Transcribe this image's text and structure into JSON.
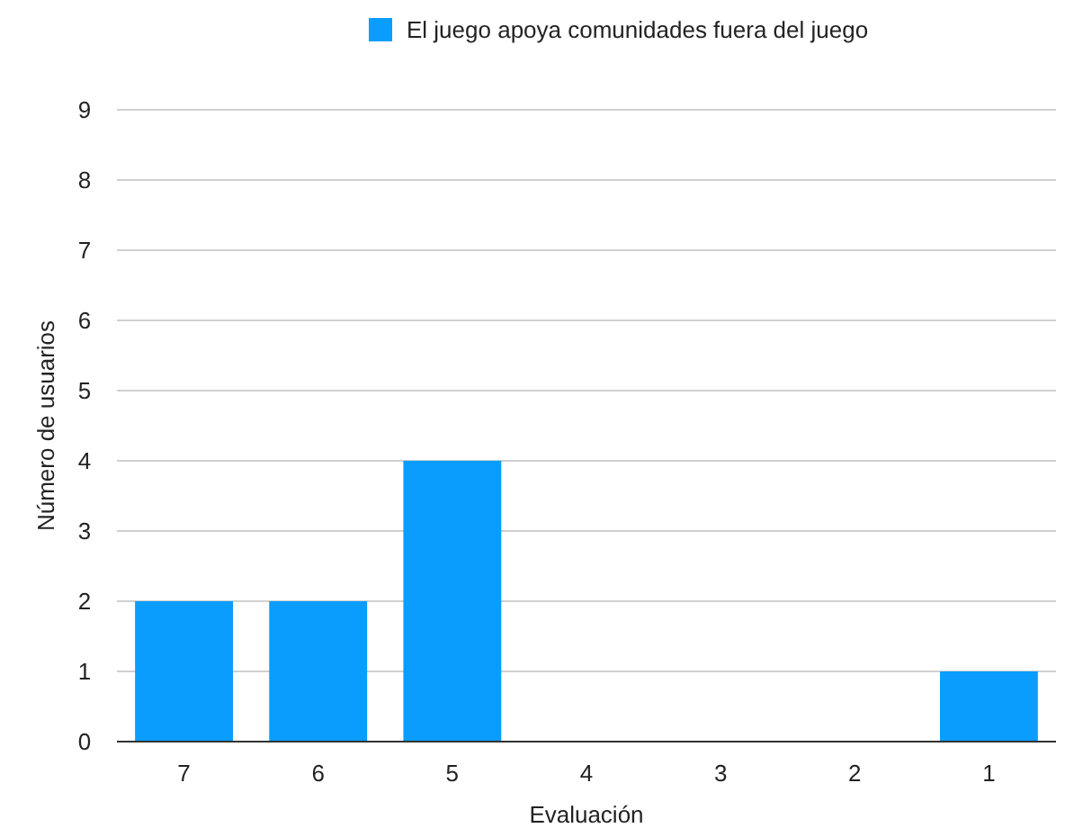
{
  "chart_data": {
    "type": "bar",
    "xlabel": "Evaluación",
    "ylabel": "Número de usuarios",
    "categories": [
      "7",
      "6",
      "5",
      "4",
      "3",
      "2",
      "1"
    ],
    "series": [
      {
        "name": "El juego apoya comunidades fuera del juego",
        "color": "#0a9dfd",
        "values": [
          2,
          2,
          4,
          0,
          0,
          0,
          1
        ]
      }
    ],
    "ylim": [
      0,
      9
    ],
    "yticks": [
      0,
      1,
      2,
      3,
      4,
      5,
      6,
      7,
      8,
      9
    ],
    "grid": "y",
    "legend": "top"
  }
}
